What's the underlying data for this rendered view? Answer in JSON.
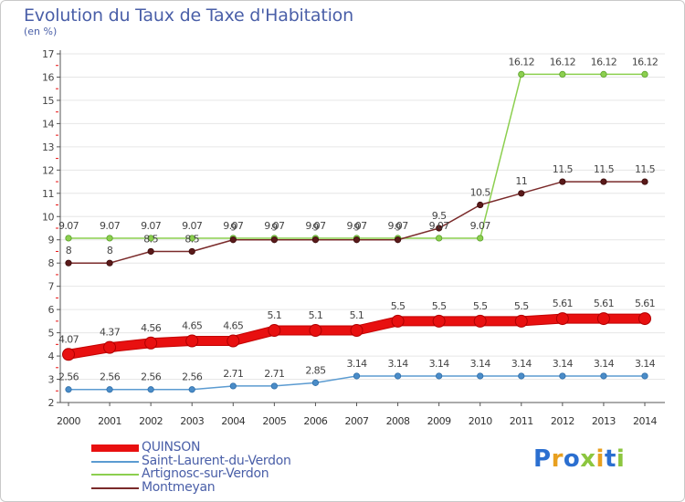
{
  "title": "Evolution du Taux de Taxe d'Habitation",
  "subtitle": "(en %)",
  "logo": {
    "letters": [
      "P",
      "r",
      "o",
      "x",
      "i",
      "t",
      "i"
    ],
    "colors": [
      "#2b6fd0",
      "#e8a020",
      "#2b6fd0",
      "#8cc63f",
      "#e8a020",
      "#2b6fd0",
      "#8cc63f"
    ]
  },
  "chart_data": {
    "type": "line",
    "title": "Evolution du Taux de Taxe d'Habitation",
    "ylabel": "(en %)",
    "xlabel": "",
    "x": [
      2000,
      2001,
      2002,
      2003,
      2004,
      2005,
      2006,
      2007,
      2008,
      2009,
      2010,
      2011,
      2012,
      2013,
      2014
    ],
    "ylim": [
      2,
      17
    ],
    "yticks": [
      2,
      3,
      4,
      5,
      6,
      7,
      8,
      9,
      10,
      11,
      12,
      13,
      14,
      15,
      16,
      17
    ],
    "series": [
      {
        "name": "QUINSON",
        "color": "#e81010",
        "width": 9,
        "values": [
          4.07,
          4.37,
          4.56,
          4.65,
          4.65,
          5.1,
          5.1,
          5.1,
          5.5,
          5.5,
          5.5,
          5.5,
          5.61,
          5.61,
          5.61
        ],
        "labels": [
          "4.07",
          "4.37",
          "4.56",
          "4.65",
          "4.65",
          "5.1",
          "5.1",
          "5.1",
          "5.5",
          "5.5",
          "5.5",
          "5.5",
          "5.61",
          "5.61",
          "5.61"
        ]
      },
      {
        "name": "Saint-Laurent-du-Verdon",
        "color": "#5b9bd1",
        "width": 1.5,
        "values": [
          2.56,
          2.56,
          2.56,
          2.56,
          2.71,
          2.71,
          2.85,
          3.14,
          3.14,
          3.14,
          3.14,
          3.14,
          3.14,
          3.14,
          3.14
        ],
        "labels": [
          "2.56",
          "2.56",
          "2.56",
          "2.56",
          "2.71",
          "2.71",
          "2.85",
          "3.14",
          "3.14",
          "3.14",
          "3.14",
          "3.14",
          "3.14",
          "3.14",
          "3.14"
        ]
      },
      {
        "name": "Artignosc-sur-Verdon",
        "color": "#8ccf4f",
        "width": 1.5,
        "values": [
          9.07,
          9.07,
          9.07,
          9.07,
          9.07,
          9.07,
          9.07,
          9.07,
          9.07,
          9.07,
          9.07,
          16.12,
          16.12,
          16.12,
          16.12
        ],
        "labels": [
          "9.07",
          "9.07",
          "9.07",
          "9.07",
          "9.07",
          "9.07",
          "9.07",
          "9.07",
          "9.07",
          "9.07",
          "9.07",
          "16.12",
          "16.12",
          "16.12",
          "16.12"
        ]
      },
      {
        "name": "Montmeyan",
        "color": "#7a2a2a",
        "width": 1.5,
        "values": [
          8,
          8,
          8.5,
          8.5,
          9,
          9,
          9,
          9,
          9,
          9.5,
          10.5,
          11,
          11.5,
          11.5,
          11.5
        ],
        "labels": [
          "8",
          "8",
          "8.5",
          "8.5",
          "9",
          "9",
          "9",
          "9",
          "9",
          "9.5",
          "10.5",
          "11",
          "11.5",
          "11.5",
          "11.5"
        ]
      }
    ]
  }
}
